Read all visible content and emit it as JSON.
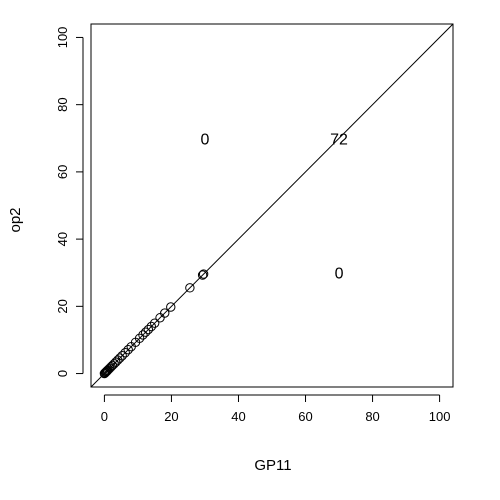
{
  "chart_data": {
    "type": "scatter",
    "xlabel": "GP11",
    "ylabel": "op2",
    "xlim": [
      -4,
      104
    ],
    "ylim": [
      -4,
      104
    ],
    "x_ticks": [
      0,
      20,
      40,
      60,
      80,
      100
    ],
    "y_ticks": [
      0,
      20,
      40,
      60,
      80,
      100
    ],
    "reference_line": {
      "slope": 1,
      "intercept": 0
    },
    "marker": "open-circle",
    "points": [
      [
        0,
        0
      ],
      [
        0.2,
        0.2
      ],
      [
        0.4,
        0.4
      ],
      [
        0.6,
        0.6
      ],
      [
        0.8,
        0.8
      ],
      [
        1.0,
        1.0
      ],
      [
        1.3,
        1.3
      ],
      [
        1.6,
        1.6
      ],
      [
        2.0,
        2.0
      ],
      [
        2.4,
        2.4
      ],
      [
        2.9,
        2.9
      ],
      [
        3.4,
        3.4
      ],
      [
        4.0,
        4.0
      ],
      [
        4.6,
        4.6
      ],
      [
        5.3,
        5.3
      ],
      [
        6.2,
        6.2
      ],
      [
        7.1,
        7.1
      ],
      [
        8.0,
        8.0
      ],
      [
        9.3,
        9.3
      ],
      [
        10.5,
        10.5
      ],
      [
        11.5,
        11.5
      ],
      [
        12.3,
        12.3
      ],
      [
        13.1,
        13.1
      ],
      [
        14.0,
        14.0
      ],
      [
        15.0,
        15.0
      ],
      [
        16.6,
        16.6
      ],
      [
        18.0,
        18.0
      ],
      [
        19.8,
        19.8
      ],
      [
        25.5,
        25.5
      ],
      [
        29.3,
        29.3
      ],
      [
        29.6,
        29.6
      ]
    ],
    "annotations": [
      {
        "text": "0",
        "x": 30,
        "y": 70
      },
      {
        "text": "72",
        "x": 70,
        "y": 70
      },
      {
        "text": "0",
        "x": 70,
        "y": 30
      }
    ]
  }
}
